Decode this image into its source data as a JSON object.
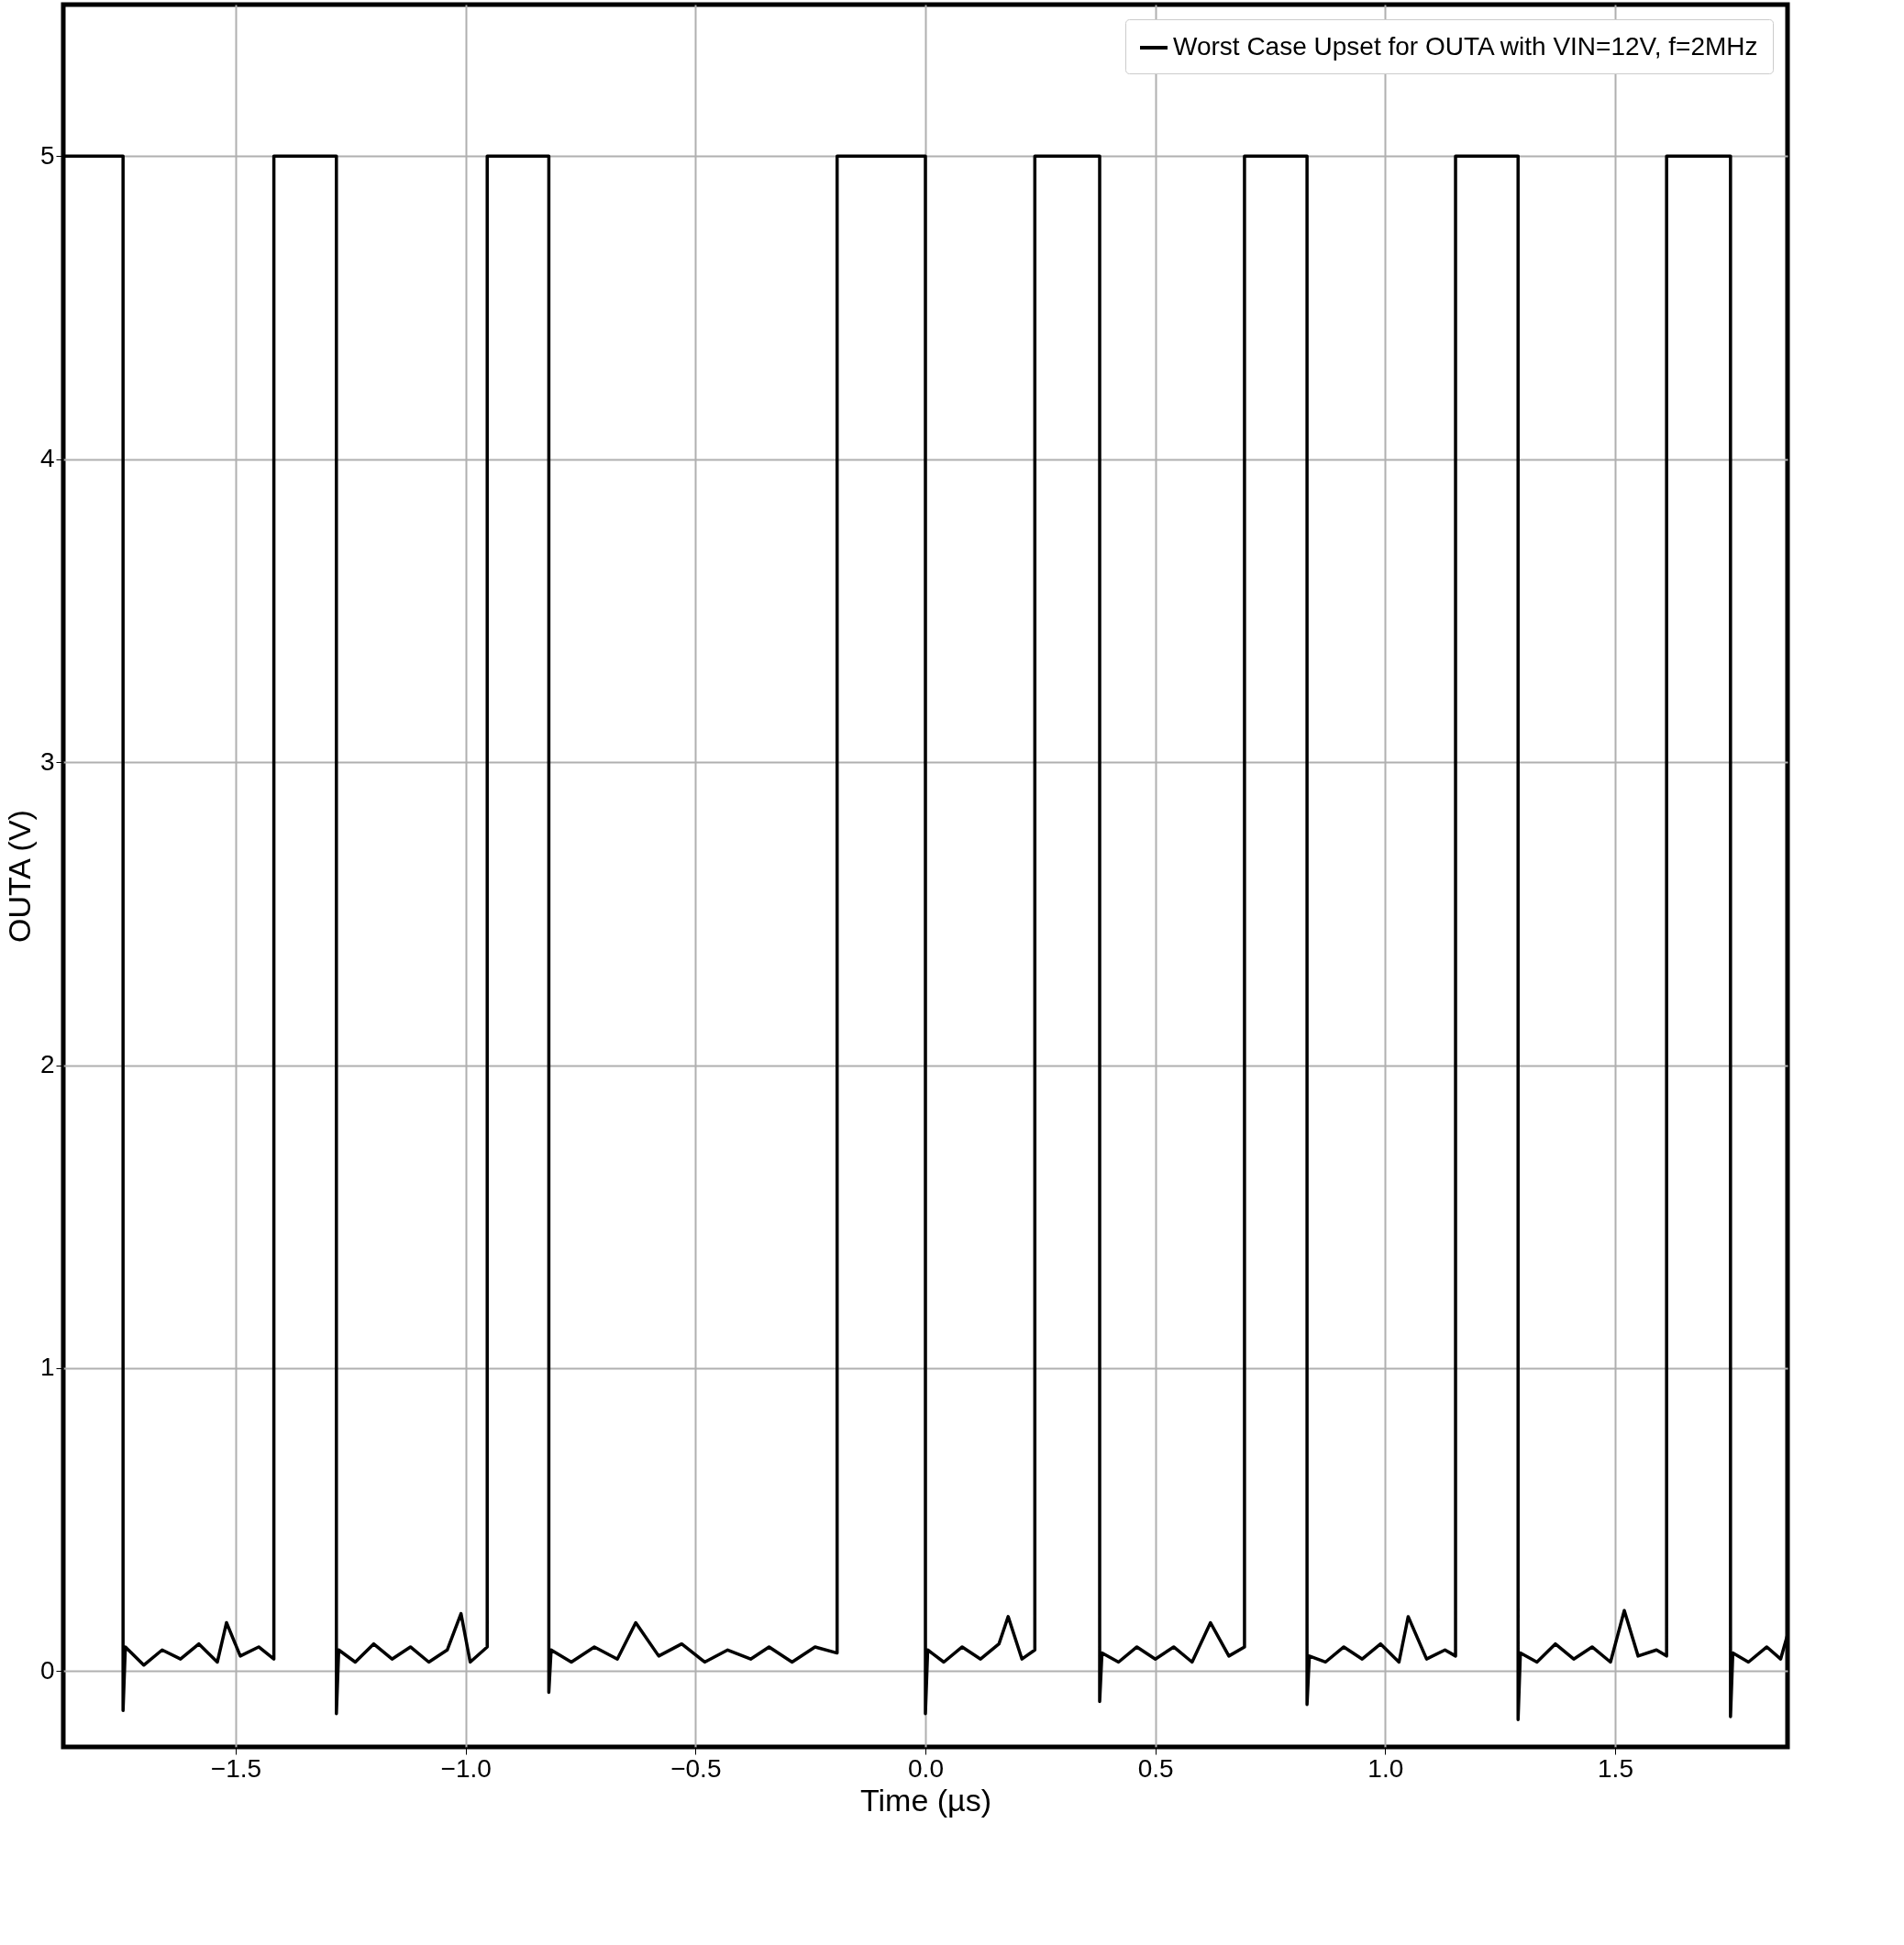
{
  "chart_data": {
    "type": "line",
    "xlabel": "Time (µs)",
    "ylabel": "OUTA (V)",
    "xlim": [
      -1.875,
      1.875
    ],
    "ylim": [
      -0.25,
      5.5
    ],
    "xticks": [
      {
        "value": -1.5,
        "label": "−1.5"
      },
      {
        "value": -1,
        "label": "−1.0"
      },
      {
        "value": -0.5,
        "label": "−0.5"
      },
      {
        "value": 0,
        "label": "0.0"
      },
      0.5,
      {
        "value": 1,
        "label": "1.0"
      },
      1.5
    ],
    "yticks": [
      0,
      1,
      2,
      3,
      4,
      5
    ],
    "grid": true,
    "legend": "top right",
    "marker": "none",
    "line_style": "solid",
    "series": [
      {
        "name": "Worst Case Upset for OUTA with VIN=12V, f=2MHz",
        "color": "#000000",
        "x": [
          -1.875,
          -1.745,
          -1.745,
          -1.74,
          -1.7,
          -1.66,
          -1.62,
          -1.58,
          -1.54,
          -1.52,
          -1.49,
          -1.45,
          -1.417,
          -1.417,
          -1.281,
          -1.281,
          -1.276,
          -1.24,
          -1.2,
          -1.16,
          -1.12,
          -1.08,
          -1.04,
          -1.01,
          -0.99,
          -0.953,
          -0.953,
          -0.819,
          -0.819,
          -0.814,
          -0.77,
          -0.72,
          -0.67,
          -0.63,
          -0.58,
          -0.53,
          -0.48,
          -0.43,
          -0.38,
          -0.34,
          -0.29,
          -0.24,
          -0.192,
          -0.192,
          0,
          0,
          0.005,
          0.04,
          0.08,
          0.12,
          0.16,
          0.18,
          0.21,
          0.238,
          0.238,
          0.379,
          0.379,
          0.384,
          0.42,
          0.46,
          0.5,
          0.54,
          0.58,
          0.62,
          0.66,
          0.694,
          0.694,
          0.83,
          0.83,
          0.835,
          0.87,
          0.91,
          0.95,
          0.99,
          1.03,
          1.05,
          1.09,
          1.13,
          1.153,
          1.153,
          1.289,
          1.289,
          1.294,
          1.33,
          1.37,
          1.41,
          1.45,
          1.49,
          1.52,
          1.55,
          1.59,
          1.612,
          1.612,
          1.751,
          1.751,
          1.756,
          1.79,
          1.83,
          1.86,
          1.875
        ],
        "values": [
          5,
          5,
          -0.13,
          0.08,
          0.02,
          0.07,
          0.04,
          0.09,
          0.03,
          0.16,
          0.05,
          0.08,
          0.04,
          5,
          5,
          -0.14,
          0.07,
          0.03,
          0.09,
          0.04,
          0.08,
          0.03,
          0.07,
          0.19,
          0.03,
          0.08,
          5,
          5,
          -0.07,
          0.07,
          0.03,
          0.08,
          0.04,
          0.16,
          0.05,
          0.09,
          0.03,
          0.07,
          0.04,
          0.08,
          0.03,
          0.08,
          0.06,
          5,
          5,
          -0.14,
          0.07,
          0.03,
          0.08,
          0.04,
          0.09,
          0.18,
          0.04,
          0.07,
          5,
          5,
          -0.1,
          0.06,
          0.03,
          0.08,
          0.04,
          0.08,
          0.03,
          0.16,
          0.05,
          0.08,
          5,
          5,
          -0.11,
          0.05,
          0.03,
          0.08,
          0.04,
          0.09,
          0.03,
          0.18,
          0.04,
          0.07,
          0.05,
          5,
          5,
          -0.16,
          0.06,
          0.03,
          0.09,
          0.04,
          0.08,
          0.03,
          0.2,
          0.05,
          0.07,
          0.05,
          5,
          5,
          -0.15,
          0.06,
          0.03,
          0.08,
          0.04,
          0.12
        ]
      }
    ]
  }
}
